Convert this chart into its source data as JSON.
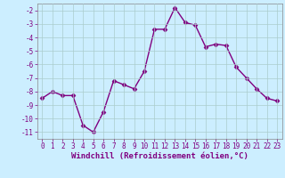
{
  "x": [
    0,
    1,
    2,
    3,
    4,
    5,
    6,
    7,
    8,
    9,
    10,
    11,
    12,
    13,
    14,
    15,
    16,
    17,
    18,
    19,
    20,
    21,
    22,
    23
  ],
  "y": [
    -8.5,
    -8.0,
    -8.3,
    -8.3,
    -10.5,
    -11.0,
    -9.5,
    -7.2,
    -7.5,
    -7.8,
    -6.5,
    -3.4,
    -3.4,
    -1.8,
    -2.9,
    -3.1,
    -4.7,
    -4.5,
    -4.6,
    -6.2,
    -7.0,
    -7.8,
    -8.5,
    -8.7
  ],
  "line_color": "#800080",
  "marker": "D",
  "marker_size": 2.5,
  "bg_color": "#cceeff",
  "grid_color": "#aacccc",
  "xlabel": "Windchill (Refroidissement éolien,°C)",
  "ylabel": "",
  "ylim": [
    -11.5,
    -1.5
  ],
  "xlim": [
    -0.5,
    23.5
  ],
  "yticks": [
    -2,
    -3,
    -4,
    -5,
    -6,
    -7,
    -8,
    -9,
    -10,
    -11
  ],
  "xticks": [
    0,
    1,
    2,
    3,
    4,
    5,
    6,
    7,
    8,
    9,
    10,
    11,
    12,
    13,
    14,
    15,
    16,
    17,
    18,
    19,
    20,
    21,
    22,
    23
  ],
  "tick_color": "#800080",
  "tick_fontsize": 5.5,
  "xlabel_fontsize": 6.5,
  "line_width": 1.0
}
